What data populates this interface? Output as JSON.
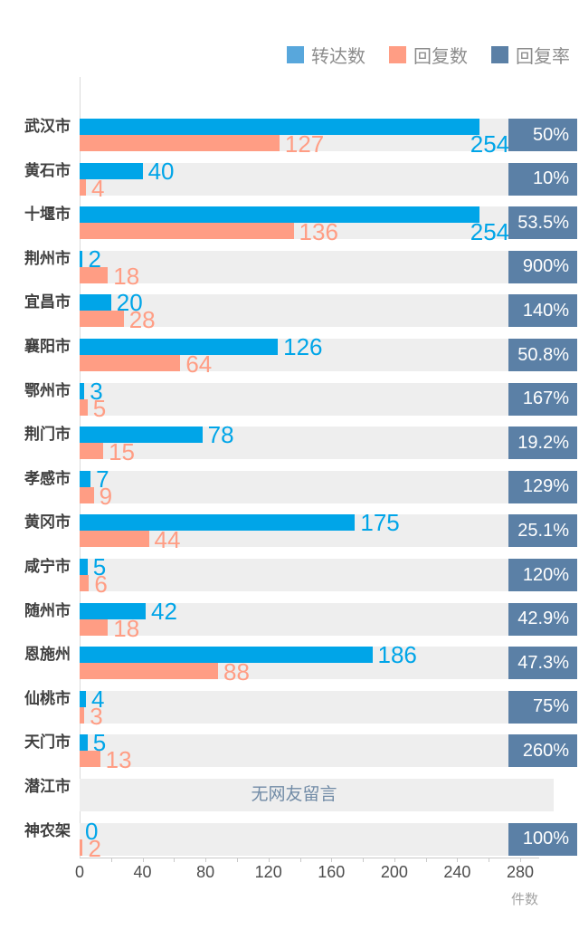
{
  "chart": {
    "legend": [
      {
        "name": "forwarded",
        "label": "转达数",
        "color": "#58A7DC"
      },
      {
        "name": "replied",
        "label": "回复数",
        "color": "#FF9D84"
      },
      {
        "name": "reply-rate",
        "label": "回复率",
        "color": "#5B80A6"
      }
    ],
    "colors": {
      "forward_bar": "#00A5E8",
      "reply_bar": "#FF9D84",
      "rate_box": "#5B80A6",
      "track": "#EEEEEE",
      "note_text": "#718BA6"
    },
    "axis": {
      "major_ticks": [
        0,
        40,
        80,
        120,
        160,
        200,
        240,
        280
      ],
      "minor_step": 20,
      "max": 280,
      "unit_label": "件数"
    },
    "empty_note": "无网友留言"
  },
  "chart_data": {
    "type": "bar",
    "orientation": "horizontal",
    "title": "",
    "xlabel": "件数",
    "xlim": [
      0,
      280
    ],
    "legend_position": "top-right",
    "categories": [
      "武汉市",
      "黄石市",
      "十堰市",
      "荆州市",
      "宜昌市",
      "襄阳市",
      "鄂州市",
      "荆门市",
      "孝感市",
      "黄冈市",
      "咸宁市",
      "随州市",
      "恩施州",
      "仙桃市",
      "天门市",
      "潜江市",
      "神农架"
    ],
    "series": [
      {
        "name": "转达数",
        "values": [
          254,
          40,
          254,
          2,
          20,
          126,
          3,
          78,
          7,
          175,
          5,
          42,
          186,
          4,
          5,
          null,
          0
        ]
      },
      {
        "name": "回复数",
        "values": [
          127,
          4,
          136,
          18,
          28,
          64,
          5,
          15,
          9,
          44,
          6,
          18,
          88,
          3,
          13,
          null,
          2
        ]
      },
      {
        "name": "回复率",
        "values": [
          "50%",
          "10%",
          "53.5%",
          "900%",
          "140%",
          "50.8%",
          "167%",
          "19.2%",
          "129%",
          "25.1%",
          "120%",
          "42.9%",
          "47.3%",
          "75%",
          "260%",
          null,
          "100%"
        ]
      }
    ],
    "annotations": [
      {
        "category": "潜江市",
        "text": "无网友留言"
      }
    ]
  },
  "rows": [
    {
      "city": "武汉市",
      "forward": 254,
      "reply": 127,
      "rate": "50%",
      "forward_label_below": true
    },
    {
      "city": "黄石市",
      "forward": 40,
      "reply": 4,
      "rate": "10%"
    },
    {
      "city": "十堰市",
      "forward": 254,
      "reply": 136,
      "rate": "53.5%",
      "forward_label_below": true
    },
    {
      "city": "荆州市",
      "forward": 2,
      "reply": 18,
      "rate": "900%"
    },
    {
      "city": "宜昌市",
      "forward": 20,
      "reply": 28,
      "rate": "140%"
    },
    {
      "city": "襄阳市",
      "forward": 126,
      "reply": 64,
      "rate": "50.8%"
    },
    {
      "city": "鄂州市",
      "forward": 3,
      "reply": 5,
      "rate": "167%"
    },
    {
      "city": "荆门市",
      "forward": 78,
      "reply": 15,
      "rate": "19.2%"
    },
    {
      "city": "孝感市",
      "forward": 7,
      "reply": 9,
      "rate": "129%"
    },
    {
      "city": "黄冈市",
      "forward": 175,
      "reply": 44,
      "rate": "25.1%"
    },
    {
      "city": "咸宁市",
      "forward": 5,
      "reply": 6,
      "rate": "120%"
    },
    {
      "city": "随州市",
      "forward": 42,
      "reply": 18,
      "rate": "42.9%"
    },
    {
      "city": "恩施州",
      "forward": 186,
      "reply": 88,
      "rate": "47.3%"
    },
    {
      "city": "仙桃市",
      "forward": 4,
      "reply": 3,
      "rate": "75%"
    },
    {
      "city": "天门市",
      "forward": 5,
      "reply": 13,
      "rate": "260%"
    },
    {
      "city": "潜江市",
      "empty": true
    },
    {
      "city": "神农架",
      "forward": 0,
      "reply": 2,
      "rate": "100%"
    }
  ]
}
